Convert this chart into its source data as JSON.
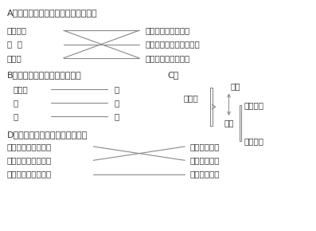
{
  "bg_color": "#ffffff",
  "title_a": "A、下列器件工作时所依据的物理原理",
  "title_b": "B、以下是物理量及单位的连线",
  "title_c": "C、",
  "title_d": "D、以下是能量转化与事例的连线",
  "sec_a_left": [
    "机械手表",
    "秤  千",
    "打框机"
  ],
  "sec_a_right": [
    "重力势能转化为动能",
    "动能和重力势能相互转化",
    "弹性势能转化为动能"
  ],
  "sec_b_left": [
    "机械能",
    "功",
    "力"
  ],
  "sec_b_right": [
    "焦",
    "瓦",
    "牛"
  ],
  "sec_c_label": "机械能",
  "sec_c_dongneng": "动能",
  "sec_c_shineng": "势能",
  "sec_c_zhongli": "重力势能",
  "sec_c_tanxing": "弹性势能",
  "sec_d_left": [
    "重力势能转化为动能",
    "动能转化为重力势能",
    "动能转化为弹性势能"
  ],
  "sec_d_right": [
    "电梯匀速上升",
    "苹果自由下落",
    "弓将子弹射出"
  ],
  "text_color": "#333333",
  "line_color": "#888888",
  "font_size": 7.5,
  "font_size_title": 8.0
}
